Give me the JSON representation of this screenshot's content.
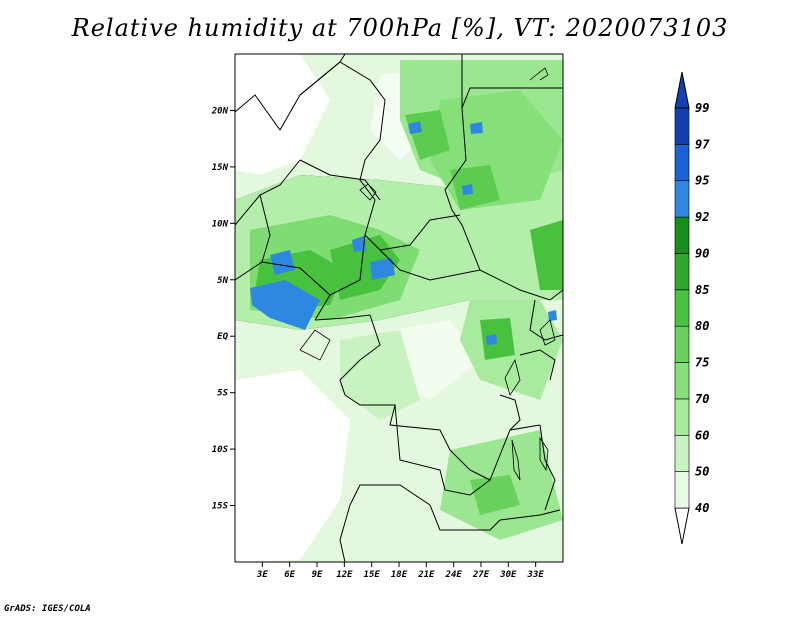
{
  "title": "Relative humidity at 700hPa [%], VT: 2020073103",
  "credit": "GrADS: IGES/COLA",
  "map": {
    "lon_range": [
      0,
      36
    ],
    "lat_range": [
      -20,
      25
    ],
    "lat_ticks": [
      {
        "value": 20,
        "label": "20N"
      },
      {
        "value": 15,
        "label": "15N"
      },
      {
        "value": 10,
        "label": "10N"
      },
      {
        "value": 5,
        "label": "5N"
      },
      {
        "value": 0,
        "label": "EQ"
      },
      {
        "value": -5,
        "label": "5S"
      },
      {
        "value": -10,
        "label": "10S"
      },
      {
        "value": -15,
        "label": "15S"
      }
    ],
    "lon_ticks": [
      {
        "value": 3,
        "label": "3E"
      },
      {
        "value": 6,
        "label": "6E"
      },
      {
        "value": 9,
        "label": "9E"
      },
      {
        "value": 12,
        "label": "12E"
      },
      {
        "value": 15,
        "label": "15E"
      },
      {
        "value": 18,
        "label": "18E"
      },
      {
        "value": 21,
        "label": "21E"
      },
      {
        "value": 24,
        "label": "24E"
      },
      {
        "value": 27,
        "label": "27E"
      },
      {
        "value": 30,
        "label": "30E"
      },
      {
        "value": 33,
        "label": "33E"
      }
    ]
  },
  "colorbar": {
    "levels": [
      "40",
      "50",
      "60",
      "70",
      "75",
      "80",
      "85",
      "90",
      "92",
      "95",
      "97",
      "99"
    ],
    "colors": [
      "#ffffff",
      "#e8fbe4",
      "#c8f2c0",
      "#a6eb9c",
      "#86e07a",
      "#68d25c",
      "#48c23e",
      "#2daa2a",
      "#168f1a",
      "#2f88e0",
      "#1c62d2",
      "#1340b0"
    ]
  }
}
